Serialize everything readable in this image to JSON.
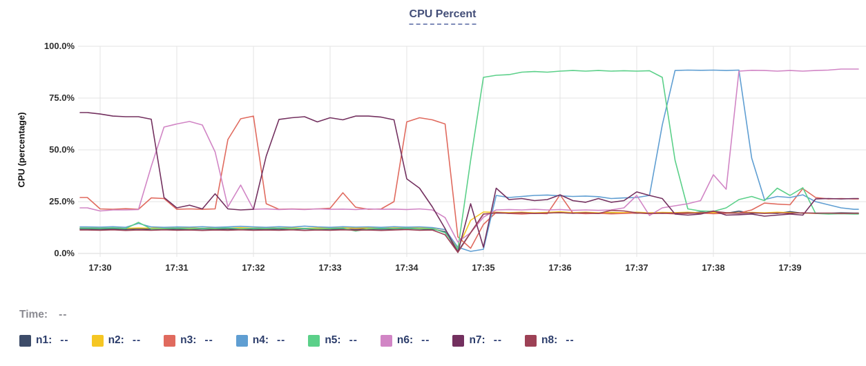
{
  "title": {
    "text": "CPU Percent"
  },
  "legend": {
    "time_label": "Time:",
    "time_value": "--",
    "items": [
      {
        "label": "n1:",
        "value": "--"
      },
      {
        "label": "n2:",
        "value": "--"
      },
      {
        "label": "n3:",
        "value": "--"
      },
      {
        "label": "n4:",
        "value": "--"
      },
      {
        "label": "n5:",
        "value": "--"
      },
      {
        "label": "n6:",
        "value": "--"
      },
      {
        "label": "n7:",
        "value": "--"
      },
      {
        "label": "n8:",
        "value": "--"
      }
    ]
  },
  "chart_data": {
    "type": "line",
    "title": "CPU Percent",
    "ylabel": "CPU (percentage)",
    "ylim": [
      0,
      100
    ],
    "grid": true,
    "x_ticks": [
      "17:30",
      "17:31",
      "17:32",
      "17:33",
      "17:34",
      "17:35",
      "17:36",
      "17:37",
      "17:38",
      "17:39"
    ],
    "y_ticks": [
      {
        "value": 0,
        "label": "0.0%"
      },
      {
        "value": 25,
        "label": "25.0%"
      },
      {
        "value": 50,
        "label": "50.0%"
      },
      {
        "value": 75,
        "label": "75.0%"
      },
      {
        "value": 100,
        "label": "100.0%"
      }
    ],
    "x_offset_minutes": -0.16667,
    "x_step_minutes": 0.16667,
    "series": [
      {
        "name": "n1",
        "color": "#3d4c69",
        "values": [
          11.8,
          11.7,
          11.8,
          11.6,
          11.9,
          11.7,
          11.8,
          11.7,
          11.6,
          11.8,
          11.7,
          11.8,
          11.6,
          11.8,
          11.7,
          11.8,
          11.7,
          11.9,
          11.6,
          11.8,
          11.7,
          11.6,
          11.8,
          11.7,
          11.8,
          12.0,
          11.8,
          11.7,
          10.5,
          1.0,
          10,
          19,
          19.5,
          19.4,
          19.6,
          19.3,
          19.5,
          19.7,
          19.4,
          19.5,
          19.3,
          19.6,
          19.5,
          19.4,
          19.5,
          19.3,
          19.5,
          19.4,
          20.0,
          19.5,
          19.4,
          20.4,
          19.4,
          19.5,
          19.3,
          20.2,
          19.4,
          19.5,
          19.4,
          19.6,
          19.5
        ]
      },
      {
        "name": "n2",
        "color": "#f5c623",
        "values": [
          12.3,
          12.2,
          12.4,
          12.1,
          12.3,
          12.2,
          12.4,
          12.2,
          12.3,
          12.1,
          12.3,
          12.2,
          12.4,
          12.2,
          12.3,
          12.2,
          12.4,
          12.1,
          12.3,
          12.2,
          12.4,
          12.2,
          12.3,
          12.1,
          12.3,
          12.4,
          12.2,
          12.3,
          11.5,
          2.5,
          16,
          20,
          19.9,
          19.7,
          19.9,
          19.6,
          19.8,
          20.1,
          19.7,
          19.9,
          19.6,
          19.8,
          19.7,
          19.9,
          19.6,
          19.8,
          19.7,
          19.9,
          19.6,
          19.8,
          19.7,
          19.6,
          19.8,
          19.6,
          19.9,
          19.7,
          19.5,
          19.3,
          19.2,
          19.3,
          19.2
        ]
      },
      {
        "name": "n3",
        "color": "#e06a5e",
        "values": [
          27,
          21.5,
          21.3,
          21.6,
          21.3,
          26.8,
          26.5,
          21.3,
          21.5,
          21.3,
          21.5,
          55,
          65,
          66.3,
          24,
          21.3,
          21.5,
          21.3,
          21.5,
          21.8,
          29.3,
          22.3,
          21.3,
          21.5,
          25,
          63.5,
          65.5,
          64.5,
          62.5,
          8,
          2.5,
          14,
          19.8,
          19.3,
          19.0,
          19.4,
          19.2,
          28.3,
          19.5,
          19.2,
          19.4,
          19.1,
          19.3,
          19.5,
          19.2,
          19.4,
          19.1,
          19.3,
          19.5,
          19.2,
          19.4,
          19.5,
          21,
          24.3,
          23.8,
          23.5,
          31.3,
          27,
          26.3,
          26.5,
          26.3
        ]
      },
      {
        "name": "n4",
        "color": "#5f9ed2",
        "values": [
          12.8,
          12.7,
          12.9,
          12.6,
          14.5,
          12.8,
          12.6,
          12.8,
          12.7,
          12.9,
          12.6,
          12.8,
          13.1,
          12.8,
          12.6,
          12.9,
          12.7,
          13.2,
          12.8,
          12.6,
          12.9,
          12.7,
          12.8,
          12.6,
          12.9,
          12.7,
          12.8,
          12.5,
          11.5,
          3,
          1,
          2,
          28,
          27,
          27.5,
          28,
          28.2,
          27.8,
          27.5,
          27.7,
          27.4,
          26.5,
          26.8,
          27,
          28,
          62,
          88.3,
          88.5,
          88.4,
          88.5,
          88.3,
          88.5,
          46,
          26,
          27.5,
          27,
          28.3,
          25,
          23.5,
          22,
          21.3
        ]
      },
      {
        "name": "n5",
        "color": "#5bd089",
        "values": [
          12.2,
          12.1,
          12.3,
          12.0,
          15.0,
          11.8,
          12.0,
          12.2,
          11.9,
          12.1,
          12.0,
          12.3,
          11.9,
          12.1,
          12.0,
          12.2,
          11.9,
          12.1,
          11.8,
          12.0,
          12.2,
          10.8,
          11.9,
          12.1,
          12.0,
          12.2,
          11.9,
          12.0,
          10.0,
          2.0,
          45,
          85,
          86,
          86.3,
          87.5,
          87.8,
          87.5,
          88,
          88.3,
          88,
          88.3,
          88,
          88.2,
          88,
          88.2,
          85,
          45,
          21.5,
          20.5,
          20.3,
          22,
          26,
          27.5,
          25.5,
          31.5,
          28,
          31.7,
          19.3,
          19,
          19.2,
          19
        ]
      },
      {
        "name": "n6",
        "color": "#d185c5",
        "values": [
          22,
          20.5,
          21,
          21,
          21.2,
          42,
          61,
          62.5,
          63.7,
          62,
          49,
          22.5,
          33,
          21.3,
          21.5,
          21.2,
          21.4,
          21.2,
          21.5,
          21.3,
          21.4,
          21.2,
          21.5,
          21.3,
          21.4,
          21.2,
          21.5,
          21,
          17.3,
          5.5,
          10,
          17.5,
          21,
          21.2,
          21,
          21.3,
          21,
          21.2,
          20.8,
          21,
          20.8,
          21,
          22,
          28,
          18.3,
          22,
          23,
          24,
          25.5,
          38,
          31,
          88,
          88.4,
          88.3,
          88,
          88.3,
          88,
          88.3,
          88.5,
          89,
          89
        ]
      },
      {
        "name": "n7",
        "color": "#73305f",
        "values": [
          68,
          67.3,
          66.3,
          66,
          66,
          64.8,
          27,
          22,
          23.3,
          21.5,
          28.8,
          21.5,
          21,
          21.3,
          47,
          64.7,
          65.5,
          66,
          63.5,
          65.5,
          64.5,
          66.3,
          66.3,
          65.8,
          64.5,
          36,
          31.5,
          22.5,
          12,
          0.5,
          24,
          3,
          31.5,
          26,
          26.5,
          25.5,
          26,
          28.3,
          25.5,
          24.7,
          26.5,
          24.7,
          25.5,
          29.7,
          28,
          26.5,
          19,
          18.5,
          19,
          20.5,
          18.5,
          18.7,
          19,
          18,
          18.5,
          19,
          18.5,
          26.3,
          26.5,
          26.3,
          26.5
        ]
      },
      {
        "name": "n8",
        "color": "#9d4155",
        "values": [
          11.3,
          11.2,
          11.4,
          11.1,
          11.3,
          11.2,
          11.4,
          11.2,
          11.3,
          11.1,
          11.3,
          11.2,
          11.4,
          11.2,
          11.3,
          11.2,
          11.4,
          11.1,
          11.3,
          11.2,
          11.4,
          11.2,
          11.3,
          11.1,
          11.3,
          11.5,
          11.2,
          11.3,
          9,
          0.5,
          10,
          19,
          19.6,
          19.4,
          19.6,
          19.3,
          19.5,
          19.7,
          19.4,
          19.6,
          19.3,
          20.8,
          20.5,
          19.6,
          19.3,
          19.5,
          19.4,
          19.6,
          19.3,
          20.3,
          19.7,
          19.4,
          19.6,
          19.3,
          19.5,
          19.4,
          19.6,
          19.4,
          19.5,
          19.3,
          19.4
        ]
      }
    ]
  }
}
